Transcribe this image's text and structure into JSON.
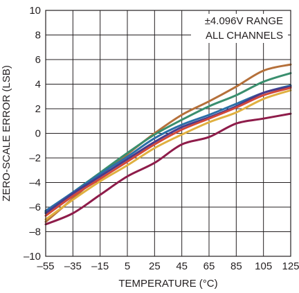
{
  "chart_data": {
    "type": "line",
    "title": "",
    "xlabel": "TEMPERATURE (°C)",
    "ylabel": "ZERO-SCALE ERROR (LSB)",
    "xlim": [
      -55,
      125
    ],
    "ylim": [
      -10,
      10
    ],
    "xticks": [
      -55,
      -35,
      -15,
      5,
      25,
      45,
      65,
      85,
      105,
      125
    ],
    "yticks": [
      -10,
      -8,
      -6,
      -4,
      -2,
      0,
      2,
      4,
      6,
      8,
      10
    ],
    "grid": true,
    "legend": "none",
    "annotation": [
      "±4.096V RANGE",
      "ALL CHANNELS"
    ],
    "series": [
      {
        "color": "#b5703a",
        "x": [
          -55,
          -35,
          -15,
          5,
          25,
          45,
          65,
          85,
          105,
          125
        ],
        "y": [
          -7.2,
          -5.3,
          -3.4,
          -1.7,
          0.0,
          1.5,
          2.6,
          3.8,
          5.1,
          5.6
        ]
      },
      {
        "color": "#3a8f6e",
        "x": [
          -55,
          -35,
          -15,
          5,
          25,
          45,
          65,
          85,
          105,
          125
        ],
        "y": [
          -6.4,
          -4.8,
          -3.2,
          -1.6,
          -0.1,
          1.1,
          2.2,
          3.1,
          4.2,
          4.9
        ]
      },
      {
        "color": "#2a6fa8",
        "x": [
          -55,
          -35,
          -15,
          5,
          25,
          45,
          65,
          85,
          105,
          125
        ],
        "y": [
          -6.3,
          -4.8,
          -3.3,
          -1.9,
          -0.4,
          0.7,
          1.5,
          2.4,
          3.3,
          3.9
        ]
      },
      {
        "color": "#4a3a8a",
        "x": [
          -55,
          -35,
          -15,
          5,
          25,
          45,
          65,
          85,
          105,
          125
        ],
        "y": [
          -6.5,
          -4.9,
          -3.5,
          -2.1,
          -0.7,
          0.5,
          1.3,
          2.2,
          3.3,
          3.8
        ]
      },
      {
        "color": "#d2473a",
        "x": [
          -55,
          -35,
          -15,
          5,
          25,
          45,
          65,
          85,
          105,
          125
        ],
        "y": [
          -6.7,
          -5.1,
          -3.7,
          -2.3,
          -0.9,
          0.3,
          1.2,
          2.1,
          3.1,
          3.7
        ]
      },
      {
        "color": "#e0b040",
        "x": [
          -55,
          -35,
          -15,
          5,
          25,
          45,
          65,
          85,
          105,
          125
        ],
        "y": [
          -7.0,
          -5.4,
          -3.9,
          -2.6,
          -1.2,
          -0.1,
          0.9,
          1.7,
          2.8,
          3.5
        ]
      },
      {
        "color": "#8e1c4a",
        "x": [
          -55,
          -35,
          -15,
          5,
          25,
          45,
          65,
          85,
          105,
          125
        ],
        "y": [
          -7.4,
          -6.5,
          -5.0,
          -3.5,
          -2.4,
          -0.9,
          -0.3,
          0.8,
          1.2,
          1.6
        ]
      }
    ]
  }
}
